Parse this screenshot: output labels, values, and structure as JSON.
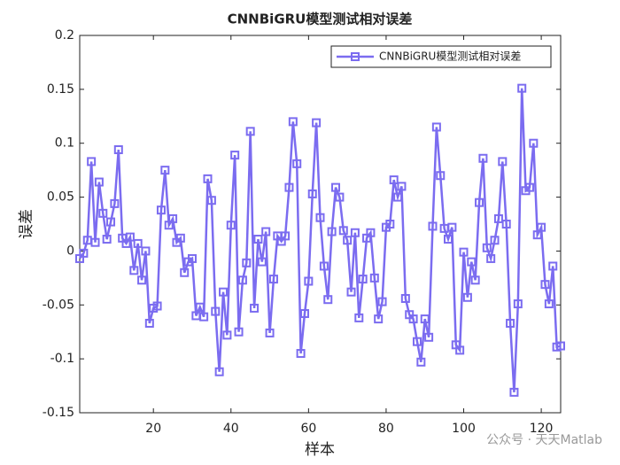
{
  "chart_data": {
    "type": "line",
    "title": "CNNBiGRU模型测试相对误差",
    "x_label": "样本",
    "y_label": "误差",
    "x": [
      1,
      2,
      3,
      4,
      5,
      6,
      7,
      8,
      9,
      10,
      11,
      12,
      13,
      14,
      15,
      16,
      17,
      18,
      19,
      20,
      21,
      22,
      23,
      24,
      25,
      26,
      27,
      28,
      29,
      30,
      31,
      32,
      33,
      34,
      35,
      36,
      37,
      38,
      39,
      40,
      41,
      42,
      43,
      44,
      45,
      46,
      47,
      48,
      49,
      50,
      51,
      52,
      53,
      54,
      55,
      56,
      57,
      58,
      59,
      60,
      61,
      62,
      63,
      64,
      65,
      66,
      67,
      68,
      69,
      70,
      71,
      72,
      73,
      74,
      75,
      76,
      77,
      78,
      79,
      80,
      81,
      82,
      83,
      84,
      85,
      86,
      87,
      88,
      89,
      90,
      91,
      92,
      93,
      94,
      95,
      96,
      97,
      98,
      99,
      100,
      101,
      102,
      103,
      104,
      105,
      106,
      107,
      108,
      109,
      110,
      111,
      112,
      113,
      114,
      115,
      116,
      117,
      118,
      119,
      120,
      121,
      122,
      123,
      124,
      125
    ],
    "series": [
      {
        "name": "CNNBiGRU模型测试相对误差",
        "color": "#7b6cf0",
        "values": [
          -0.007,
          -0.002,
          0.01,
          0.083,
          0.008,
          0.064,
          0.035,
          0.011,
          0.027,
          0.044,
          0.094,
          0.012,
          0.007,
          0.013,
          -0.018,
          0.007,
          -0.027,
          0.0,
          -0.067,
          -0.053,
          -0.051,
          0.038,
          0.075,
          0.024,
          0.03,
          0.008,
          0.012,
          -0.02,
          -0.01,
          -0.007,
          -0.06,
          -0.052,
          -0.061,
          0.067,
          0.047,
          -0.056,
          -0.112,
          -0.038,
          -0.078,
          0.024,
          0.089,
          -0.075,
          -0.027,
          -0.011,
          0.111,
          -0.053,
          0.011,
          -0.01,
          0.018,
          -0.076,
          -0.026,
          0.014,
          0.009,
          0.014,
          0.059,
          0.12,
          0.081,
          -0.095,
          -0.058,
          -0.028,
          0.053,
          0.119,
          0.031,
          -0.014,
          -0.045,
          0.018,
          0.059,
          0.05,
          0.019,
          0.01,
          -0.038,
          0.017,
          -0.062,
          -0.026,
          0.012,
          0.017,
          -0.025,
          -0.063,
          -0.047,
          0.022,
          0.025,
          0.066,
          0.05,
          0.06,
          -0.044,
          -0.059,
          -0.063,
          -0.084,
          -0.103,
          -0.063,
          -0.08,
          0.023,
          0.115,
          0.07,
          0.021,
          0.011,
          0.022,
          -0.087,
          -0.092,
          -0.001,
          -0.043,
          -0.01,
          -0.027,
          0.045,
          0.086,
          0.003,
          -0.007,
          0.01,
          0.03,
          0.083,
          0.025,
          -0.067,
          -0.131,
          -0.049,
          0.151,
          0.056,
          0.059,
          0.1,
          0.015,
          0.022,
          -0.031,
          -0.049,
          -0.014,
          -0.089,
          -0.088
        ]
      }
    ],
    "xlim": [
      1,
      125
    ],
    "ylim": [
      -0.15,
      0.2
    ],
    "xticks": [
      20,
      40,
      60,
      80,
      100,
      120
    ],
    "yticks": [
      -0.15,
      -0.1,
      -0.05,
      0,
      0.05,
      0.1,
      0.15,
      0.2
    ],
    "legend_position": "upper-right",
    "watermark": "公众号 · 天天Matlab"
  }
}
